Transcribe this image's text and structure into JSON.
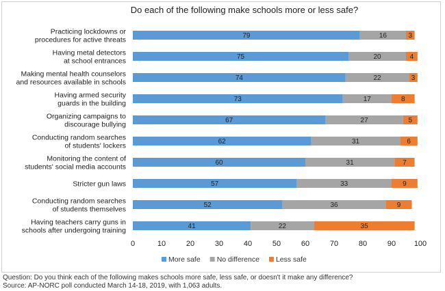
{
  "chart_data": {
    "type": "bar",
    "orientation": "horizontal",
    "stacked": true,
    "title": "Do each of the following make schools more or less safe?",
    "categories": [
      [
        "Practicing lockdowns or",
        "procedures for active threats"
      ],
      [
        "Having metal detectors",
        "at school entrances"
      ],
      [
        "Making mental health counselors",
        "and resources available in schools"
      ],
      [
        "Having armed security",
        "guards in the building"
      ],
      [
        "Organizing campaigns to",
        "discourage bullying"
      ],
      [
        "Conducting random searches",
        "of students' lockers"
      ],
      [
        "Monitoring the content of",
        "students' social media accounts"
      ],
      [
        "Stricter gun laws"
      ],
      [
        "Conducting random searches",
        "of students themselves"
      ],
      [
        "Having teachers carry guns in",
        "schools after undergoing training"
      ]
    ],
    "series": [
      {
        "name": "More safe",
        "color": "#5b9bd5",
        "values": [
          79,
          75,
          74,
          73,
          67,
          62,
          60,
          57,
          52,
          41
        ]
      },
      {
        "name": "No difference",
        "color": "#a5a5a5",
        "values": [
          16,
          20,
          22,
          17,
          27,
          31,
          31,
          33,
          36,
          22
        ]
      },
      {
        "name": "Less safe",
        "color": "#ed7d31",
        "values": [
          3,
          4,
          3,
          8,
          5,
          6,
          7,
          9,
          9,
          35
        ]
      }
    ],
    "xlim": [
      0,
      100
    ],
    "xticks": [
      0,
      10,
      20,
      30,
      40,
      50,
      60,
      70,
      80,
      90,
      100
    ],
    "legend_position": "bottom",
    "grid": false
  },
  "footnote": {
    "question": "Question: Do you think each of the following makes schools more safe, less safe, or doesn't it make any difference?",
    "source": "Source: AP-NORC poll conducted March 14-18, 2019, with 1,063 adults."
  }
}
